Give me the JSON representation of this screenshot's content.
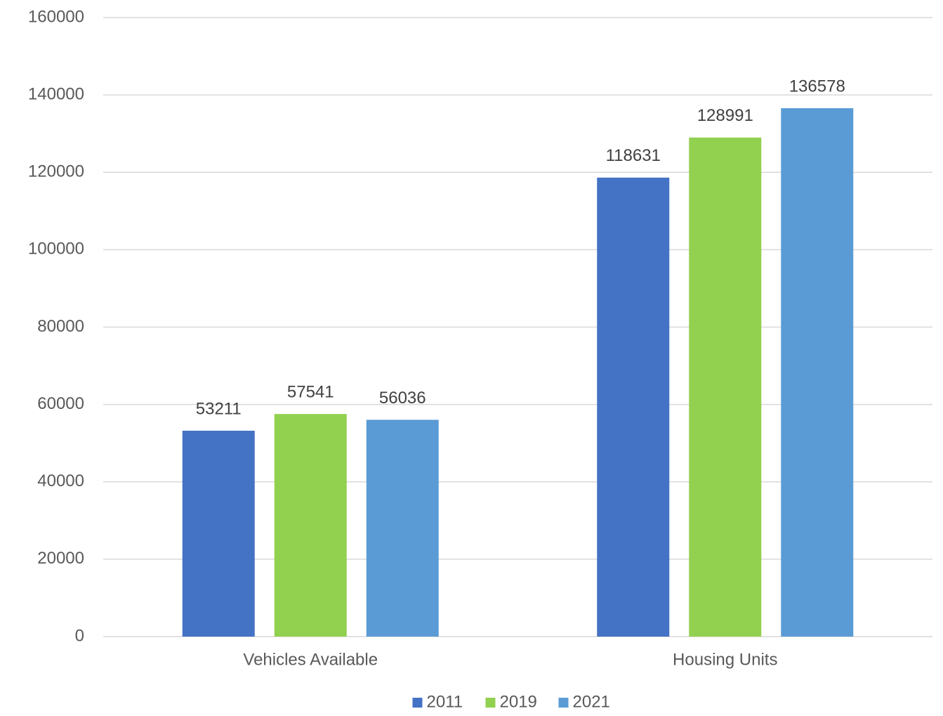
{
  "chart_data": {
    "type": "bar",
    "categories": [
      "Vehicles Available",
      "Housing Units"
    ],
    "series": [
      {
        "name": "2011",
        "color": "#4472c4",
        "values": [
          53211,
          118631
        ]
      },
      {
        "name": "2019",
        "color": "#92d050",
        "values": [
          57541,
          128991
        ]
      },
      {
        "name": "2021",
        "color": "#5b9bd5",
        "values": [
          56036,
          136578
        ]
      }
    ],
    "ylim": [
      0,
      160000
    ],
    "yticks": [
      0,
      20000,
      40000,
      60000,
      80000,
      100000,
      120000,
      140000,
      160000
    ],
    "grid": true,
    "legend": "bottom"
  }
}
